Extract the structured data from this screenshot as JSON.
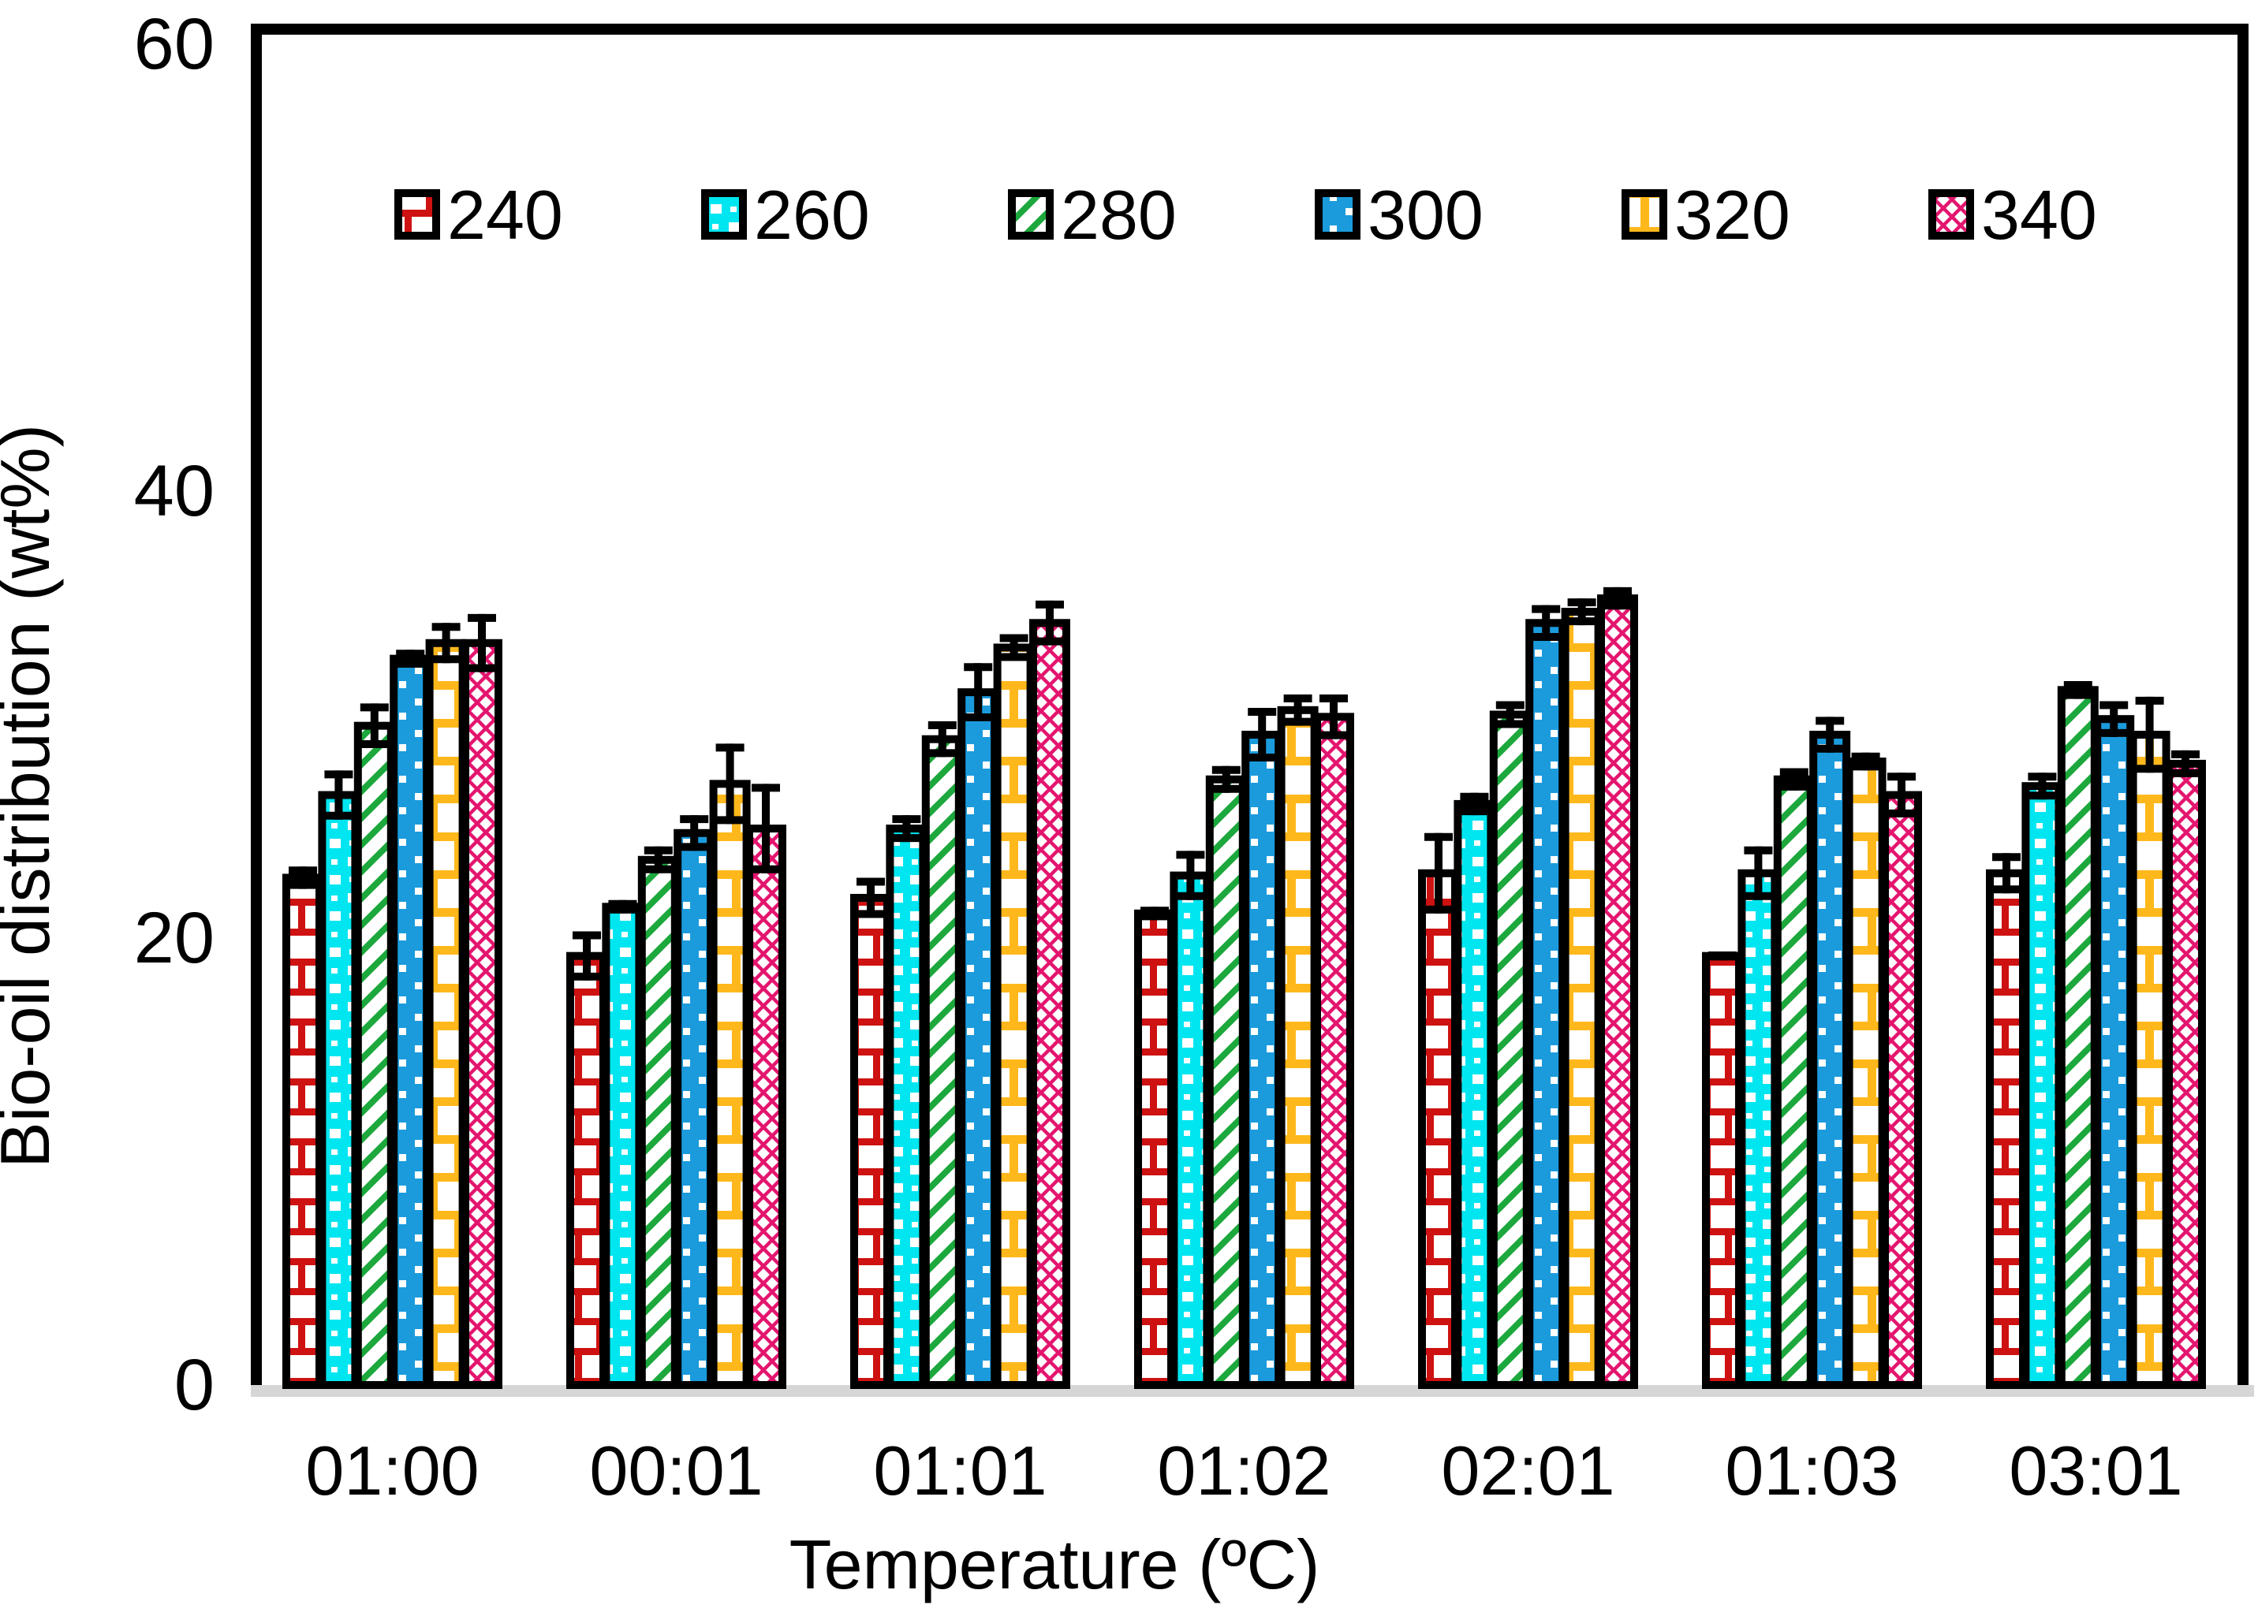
{
  "chart_data": {
    "type": "bar",
    "title": "",
    "xlabel": "Temperature (ºC)",
    "ylabel": "Bio-oil distribution (wt%)",
    "ylim": [
      0,
      60
    ],
    "yticks": [
      0,
      20,
      40,
      60
    ],
    "grid": "off",
    "legend_position": "top-inside",
    "categories": [
      "01:00",
      "00:01",
      "01:01",
      "01:02",
      "02:01",
      "01:03",
      "03:01"
    ],
    "series": [
      {
        "name": "240",
        "pattern": "brick",
        "color": "#CE1111",
        "bg": "#ffffff",
        "values": [
          22.7,
          19.2,
          21.8,
          21.1,
          22.9,
          19.2,
          22.9
        ],
        "errors": [
          0.5,
          1.1,
          0.9,
          0.3,
          1.8,
          0.2,
          0.9
        ]
      },
      {
        "name": "260",
        "pattern": "check",
        "color": "#00E6F0",
        "bg": "#00E6F0",
        "values": [
          26.4,
          21.4,
          24.9,
          22.8,
          26.0,
          22.9,
          26.8
        ],
        "errors": [
          1.1,
          0.3,
          0.6,
          1.1,
          0.5,
          1.2,
          0.6
        ]
      },
      {
        "name": "280",
        "pattern": "diagonal",
        "color": "#1CA83C",
        "bg": "#ffffff",
        "values": [
          29.5,
          23.5,
          28.9,
          27.1,
          30.0,
          27.1,
          31.1
        ],
        "errors": [
          1.0,
          0.6,
          0.8,
          0.6,
          0.6,
          0.5,
          0.4
        ]
      },
      {
        "name": "300",
        "pattern": "dots",
        "color": "#1B9BDC",
        "bg": "#1B9BDC",
        "values": [
          32.5,
          24.7,
          31.0,
          29.1,
          34.1,
          29.1,
          29.8
        ],
        "errors": [
          0.4,
          0.8,
          1.3,
          1.2,
          0.8,
          0.8,
          0.8
        ]
      },
      {
        "name": "320",
        "pattern": "brick-big",
        "color": "#FFB81C",
        "bg": "#ffffff",
        "values": [
          33.2,
          26.9,
          33.0,
          30.2,
          34.6,
          27.9,
          29.1
        ],
        "errors": [
          0.9,
          1.8,
          0.6,
          0.7,
          0.6,
          0.4,
          1.7
        ]
      },
      {
        "name": "340",
        "pattern": "crosshatch",
        "color": "#E3156E",
        "bg": "#ffffff",
        "values": [
          33.2,
          24.9,
          34.1,
          29.9,
          35.2,
          26.4,
          27.8
        ],
        "errors": [
          1.3,
          2.0,
          1.0,
          1.0,
          0.5,
          1.0,
          0.6
        ]
      }
    ],
    "frame_color": "#000000",
    "baseline_color": "#D6D6D6",
    "error_bar_color": "#000000"
  }
}
